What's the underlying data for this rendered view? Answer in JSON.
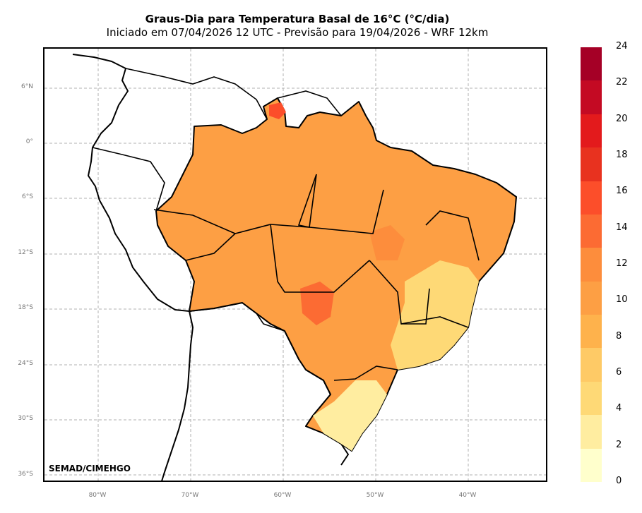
{
  "header": {
    "title": "Graus-Dia para Temperatura Basal de 16°C (°C/dia)",
    "subtitle": "Iniciado em 07/04/2026 12 UTC - Previsão para 19/04/2026 - WRF 12km"
  },
  "credit": "SEMAD/CIMEHGO",
  "lat_ticks": [
    "6°N",
    "0°",
    "6°S",
    "12°S",
    "18°S",
    "24°S",
    "30°S",
    "36°S"
  ],
  "lon_ticks": [
    "80°W",
    "70°W",
    "60°W",
    "50°W",
    "40°W"
  ],
  "colorbar": {
    "labels": [
      "0",
      "2",
      "4",
      "6",
      "8",
      "10",
      "12",
      "14",
      "16",
      "18",
      "20",
      "22",
      "24"
    ],
    "colors": [
      "#ffffcc",
      "#ffeda0",
      "#fed976",
      "#feca66",
      "#feb24c",
      "#fd9f44",
      "#fd8d3c",
      "#fc6b33",
      "#fc4e2a",
      "#e8321f",
      "#e31a1c",
      "#c40a23",
      "#a50026"
    ]
  },
  "map": {
    "region": "Brasil",
    "grid": true,
    "lat_range": [
      -36,
      9
    ],
    "lon_range": [
      -86,
      -31
    ]
  }
}
